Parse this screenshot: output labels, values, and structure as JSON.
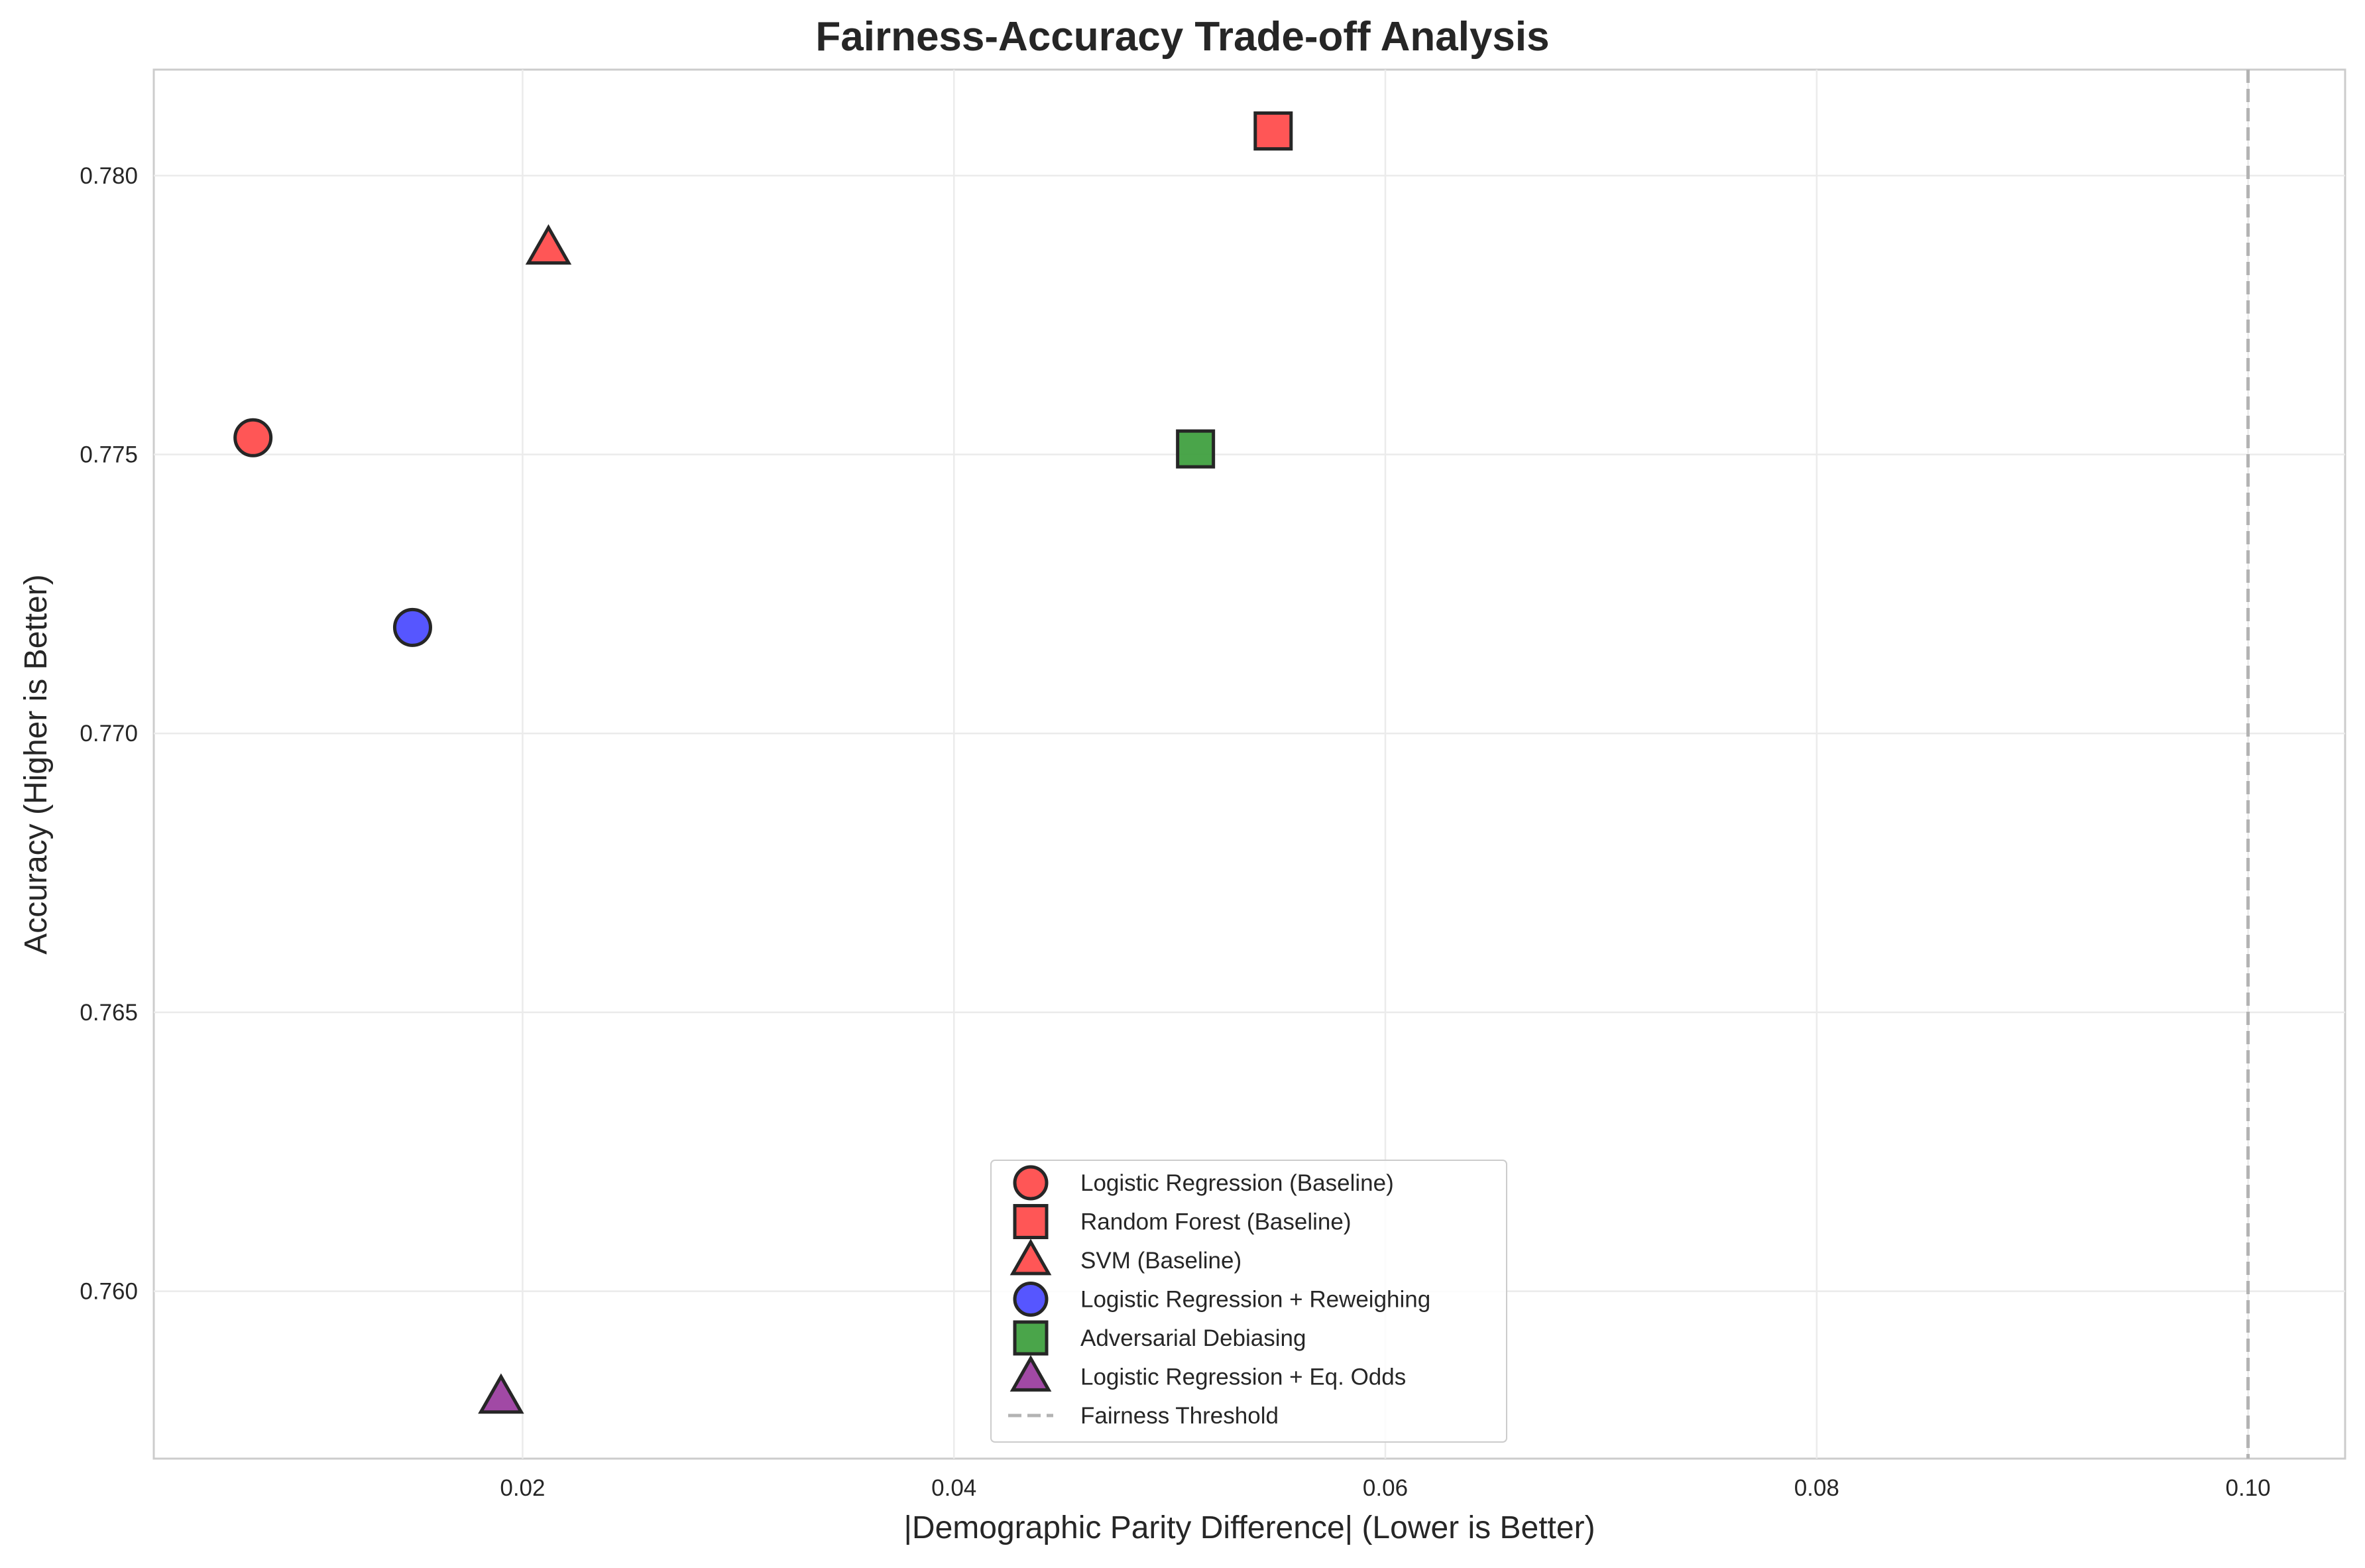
{
  "chart_data": {
    "type": "scatter",
    "title": "Fairness-Accuracy Trade-off Analysis",
    "xlabel": "|Demographic Parity Difference| (Lower is Better)",
    "ylabel": "Accuracy (Higher is Better)",
    "xlim": [
      0.0029,
      0.1045
    ],
    "ylim": [
      0.757,
      0.7819
    ],
    "xticks": [
      0.02,
      0.04,
      0.06,
      0.08,
      0.1
    ],
    "xtick_labels": [
      "0.02",
      "0.04",
      "0.06",
      "0.08",
      "0.10"
    ],
    "yticks": [
      0.76,
      0.765,
      0.77,
      0.775,
      0.78
    ],
    "ytick_labels": [
      "0.760",
      "0.765",
      "0.770",
      "0.775",
      "0.780"
    ],
    "grid": true,
    "legend_position": "lower-center",
    "series": [
      {
        "name": "Logistic Regression (Baseline)",
        "marker": "circle",
        "color": "#ff4d4d",
        "x": [
          0.0075
        ],
        "y": [
          0.7753
        ]
      },
      {
        "name": "Random Forest (Baseline)",
        "marker": "square",
        "color": "#ff4d4d",
        "x": [
          0.0548
        ],
        "y": [
          0.7808
        ]
      },
      {
        "name": "SVM (Baseline)",
        "marker": "triangle",
        "color": "#ff4d4d",
        "x": [
          0.0212
        ],
        "y": [
          0.7787
        ]
      },
      {
        "name": "Logistic Regression + Reweighing",
        "marker": "circle",
        "color": "#4d4dff",
        "x": [
          0.0149
        ],
        "y": [
          0.7719
        ]
      },
      {
        "name": "Adversarial Debiasing",
        "marker": "square",
        "color": "#40a040",
        "x": [
          0.0512
        ],
        "y": [
          0.7751
        ]
      },
      {
        "name": "Logistic Regression + Eq. Odds",
        "marker": "triangle",
        "color": "#9c3fa0",
        "x": [
          0.019
        ],
        "y": [
          0.7581
        ]
      }
    ],
    "reference_lines": [
      {
        "name": "Fairness Threshold",
        "orientation": "vertical",
        "x": 0.1,
        "color": "#b3b3b3",
        "style": "dashed"
      }
    ]
  }
}
